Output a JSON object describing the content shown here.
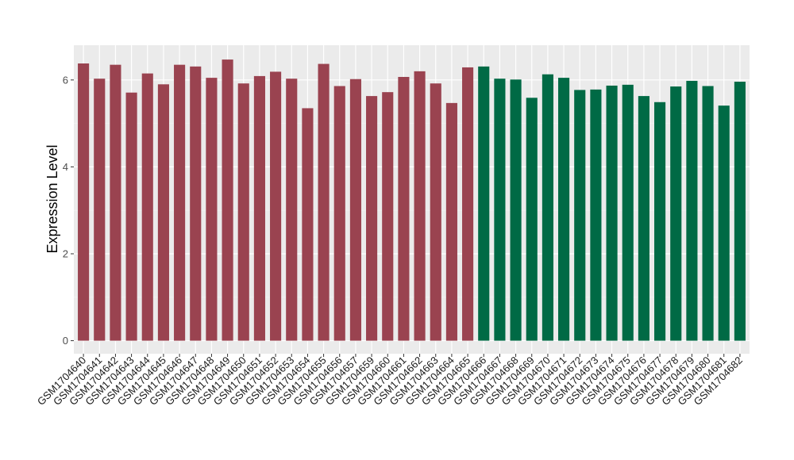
{
  "chart_data": {
    "type": "bar",
    "title": "",
    "xlabel": "",
    "ylabel": "Expression Level",
    "ylim": [
      -0.3,
      6.8
    ],
    "yticks": [
      0,
      2,
      4,
      6
    ],
    "grid": true,
    "background": "#ebebeb",
    "gridline_color": "#ffffff",
    "categories": [
      "GSM1704640",
      "GSM1704641",
      "GSM1704642",
      "GSM1704643",
      "GSM1704644",
      "GSM1704645",
      "GSM1704646",
      "GSM1704647",
      "GSM1704648",
      "GSM1704649",
      "GSM1704650",
      "GSM1704651",
      "GSM1704652",
      "GSM1704653",
      "GSM1704654",
      "GSM1704655",
      "GSM1704656",
      "GSM1704657",
      "GSM1704659",
      "GSM1704660",
      "GSM1704661",
      "GSM1704662",
      "GSM1704663",
      "GSM1704664",
      "GSM1704665",
      "GSM1704666",
      "GSM1704667",
      "GSM1704668",
      "GSM1704669",
      "GSM1704670",
      "GSM1704671",
      "GSM1704672",
      "GSM1704673",
      "GSM1704674",
      "GSM1704675",
      "GSM1704676",
      "GSM1704677",
      "GSM1704678",
      "GSM1704679",
      "GSM1704680",
      "GSM1704681",
      "GSM1704682"
    ],
    "values": [
      6.38,
      6.03,
      6.35,
      5.71,
      6.15,
      5.9,
      6.35,
      6.31,
      6.05,
      6.47,
      5.92,
      6.09,
      6.19,
      6.03,
      5.35,
      6.37,
      5.86,
      6.02,
      5.63,
      5.72,
      6.07,
      6.2,
      5.92,
      5.47,
      6.29,
      6.31,
      6.03,
      6.01,
      5.59,
      6.13,
      6.05,
      5.77,
      5.78,
      5.87,
      5.89,
      5.63,
      5.49,
      5.85,
      5.98,
      5.86,
      5.41,
      5.96
    ],
    "colors": [
      "#9a4350",
      "#9a4350",
      "#9a4350",
      "#9a4350",
      "#9a4350",
      "#9a4350",
      "#9a4350",
      "#9a4350",
      "#9a4350",
      "#9a4350",
      "#9a4350",
      "#9a4350",
      "#9a4350",
      "#9a4350",
      "#9a4350",
      "#9a4350",
      "#9a4350",
      "#9a4350",
      "#9a4350",
      "#9a4350",
      "#9a4350",
      "#9a4350",
      "#9a4350",
      "#9a4350",
      "#9a4350",
      "#006a45",
      "#006a45",
      "#006a45",
      "#006a45",
      "#006a45",
      "#006a45",
      "#006a45",
      "#006a45",
      "#006a45",
      "#006a45",
      "#006a45",
      "#006a45",
      "#006a45",
      "#006a45",
      "#006a45",
      "#006a45",
      "#006a45"
    ]
  }
}
